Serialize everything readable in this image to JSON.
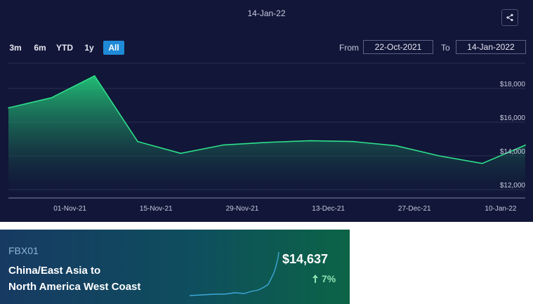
{
  "chart": {
    "header_date": "14-Jan-22",
    "range_buttons": [
      "3m",
      "6m",
      "YTD",
      "1y",
      "All"
    ],
    "active_range": "All",
    "from_label": "From",
    "from_value": "22-Oct-2021",
    "to_label": "To",
    "to_value": "14-Jan-2022",
    "icons": {
      "share": "share-icon"
    },
    "colors": {
      "line": "#2ee08a",
      "background": "#121638",
      "active_button": "#1f8ad8"
    }
  },
  "chart_data": {
    "type": "area",
    "x": [
      "22-Oct-2021",
      "29-Oct-2021",
      "05-Nov-2021",
      "12-Nov-2021",
      "19-Nov-2021",
      "26-Nov-2021",
      "03-Dec-2021",
      "10-Dec-2021",
      "17-Dec-2021",
      "24-Dec-2021",
      "31-Dec-2021",
      "07-Jan-2022",
      "14-Jan-2022"
    ],
    "series": [
      {
        "values": [
          16850,
          17450,
          18750,
          14850,
          14150,
          14650,
          14800,
          14900,
          14850,
          14600,
          14000,
          13550,
          14637
        ]
      }
    ],
    "x_tick_labels": [
      "01-Nov-21",
      "15-Nov-21",
      "29-Nov-21",
      "13-Dec-21",
      "27-Dec-21",
      "10-Jan-22"
    ],
    "y_tick_labels": [
      "$12,000",
      "$14,000",
      "$16,000",
      "$18,000"
    ],
    "ylim": [
      11500,
      19500
    ],
    "grid": true
  },
  "index_card": {
    "code": "FBX01",
    "route_line1": "China/East Asia to",
    "route_line2": "North America West Coast",
    "price": "$14,637",
    "change": "7%",
    "change_direction": "up",
    "icons": {
      "change": "arrow-up-icon"
    }
  }
}
